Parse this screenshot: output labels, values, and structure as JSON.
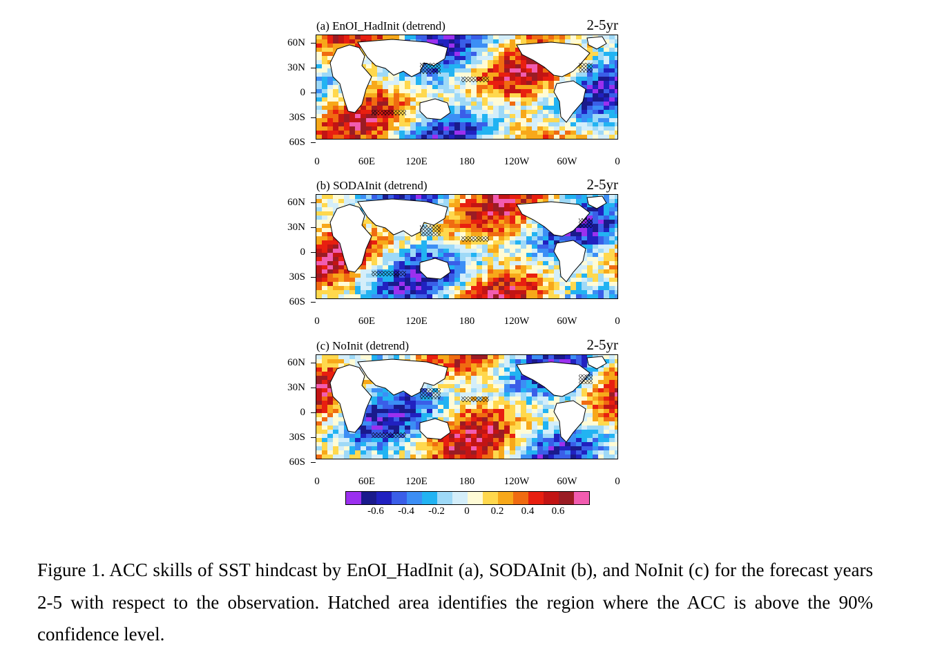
{
  "panels": [
    {
      "title": "(a) EnOI_HadInit (detrend)",
      "period": "2-5yr"
    },
    {
      "title": "(b) SODAInit (detrend)",
      "period": "2-5yr"
    },
    {
      "title": "(c) NoInit (detrend)",
      "period": "2-5yr"
    }
  ],
  "lat_ticks": [
    "60N",
    "30N",
    "0",
    "30S",
    "60S"
  ],
  "lon_ticks": [
    "0",
    "60E",
    "120E",
    "180",
    "120W",
    "60W",
    "0"
  ],
  "colorbar": {
    "colors": [
      "#9b30ef",
      "#1a1a8c",
      "#2121c0",
      "#3a5ee8",
      "#3c8ef5",
      "#22b3f2",
      "#9ed9f7",
      "#d4eefa",
      "#fffbd6",
      "#ffd84d",
      "#f7a81a",
      "#f06b11",
      "#e81f10",
      "#c21414",
      "#9a1c24",
      "#f25cb0"
    ],
    "labels": [
      "-0.6",
      "-0.4",
      "-0.2",
      "0",
      "0.2",
      "0.4",
      "0.6"
    ]
  },
  "caption": "Figure 1. ACC skills of SST hindcast by EnOI_HadInit (a), SODAInit (b), and NoInit (c) for the forecast years 2-5 with respect to the observation. Hatched area identifies the region where the ACC is above the 90% confidence level."
}
